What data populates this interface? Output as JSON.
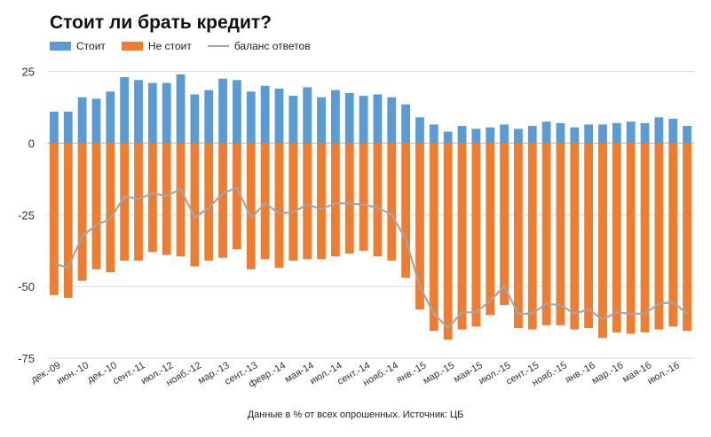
{
  "chart_data": {
    "type": "bar",
    "title": "Стоит ли брать кредит?",
    "source_note": "Данные в % от всех опрошенных. Источник: ЦБ",
    "ylim": [
      -75,
      32
    ],
    "yticks": [
      25,
      0,
      -25,
      -50,
      -75
    ],
    "x_tick_labels": [
      "дек.-09",
      "июн.-10",
      "дек.-10",
      "сент.-11",
      "июл.-12",
      "нояб.-12",
      "мар.-13",
      "сент.-13",
      "февр.-14",
      "мая-14",
      "июл.-14",
      "сент.-14",
      "нояб.-14",
      "янв.-15",
      "мар.-15",
      "мая-15",
      "июл.-15",
      "сент.-15",
      "нояб.-15",
      "янв.-16",
      "мар.-16",
      "мая-16",
      "июл.-16"
    ],
    "grid": true,
    "legend_position": "top-left",
    "series": [
      {
        "name": "Стоит",
        "kind": "bar",
        "color": "#5b9bd5",
        "values": [
          11,
          11,
          16,
          15.5,
          18,
          23,
          22,
          21,
          21,
          24,
          17,
          18.5,
          22.5,
          22,
          18,
          20,
          19,
          16.5,
          19.5,
          16,
          18.5,
          17.5,
          16.5,
          17,
          16,
          13.5,
          9,
          6.5,
          4,
          6,
          5,
          5.5,
          6.5,
          5,
          6,
          7.5,
          7,
          5.5,
          6.5,
          6.5,
          7,
          7.5,
          7,
          9,
          8.5,
          6
        ]
      },
      {
        "name": "Не стоит",
        "kind": "bar",
        "color": "#ed7d31",
        "values": [
          -53,
          -54,
          -48,
          -44,
          -45,
          -41,
          -41,
          -38,
          -39,
          -39.5,
          -43,
          -41,
          -40,
          -37,
          -44,
          -40.5,
          -43.5,
          -41,
          -40.5,
          -40.5,
          -39.5,
          -38.5,
          -37.5,
          -39.5,
          -41,
          -47,
          -58,
          -65.5,
          -68.5,
          -65,
          -64,
          -60,
          -56.5,
          -64.5,
          -65,
          -63.5,
          -63.5,
          -65,
          -64.5,
          -68,
          -66,
          -66.5,
          -66,
          -65,
          -64,
          -65.5
        ]
      },
      {
        "name": "баланс ответов",
        "kind": "line",
        "color": "#a5a5a5",
        "values": [
          -42,
          -43.5,
          -32.5,
          -28.5,
          -26.5,
          -18.5,
          -19.5,
          -17.5,
          -18.5,
          -16,
          -26,
          -22.5,
          -17.5,
          -15.5,
          -26,
          -21,
          -24.5,
          -24,
          -21.5,
          -23,
          -21,
          -21,
          -21.5,
          -22.5,
          -25,
          -33.5,
          -50,
          -59.5,
          -64.5,
          -59,
          -59,
          -55,
          -50,
          -59.5,
          -59.5,
          -56,
          -56.5,
          -59.5,
          -58,
          -61.5,
          -59,
          -59.5,
          -59.5,
          -56,
          -55.5,
          -59.5
        ]
      }
    ]
  }
}
